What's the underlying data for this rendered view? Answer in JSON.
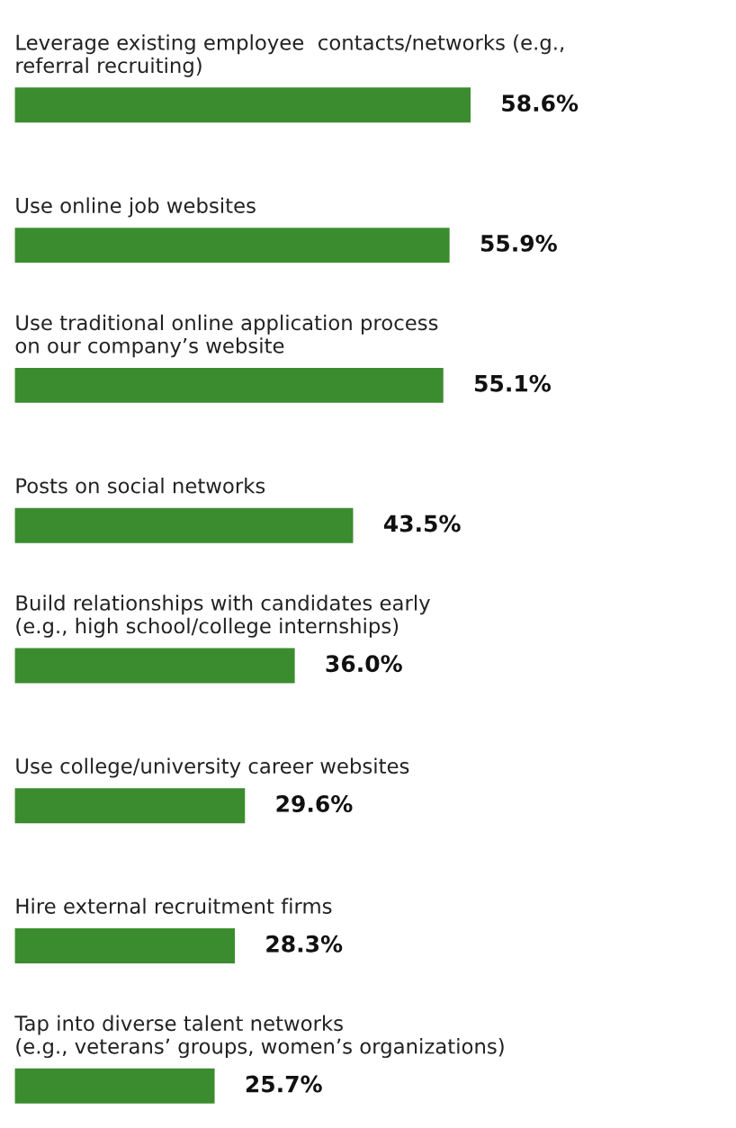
{
  "chart_data": {
    "type": "bar",
    "orientation": "horizontal",
    "color": "#3b8c2f",
    "categories": [
      "Leverage existing employee  contacts/networks (e.g.,\nreferral recruiting)",
      "Use online job websites",
      "Use traditional online application process\non our company’s website",
      "Posts on social networks",
      "Build relationships with candidates early\n(e.g., high school/college internships)",
      "Use college/university career websites",
      "Hire external recruitment firms",
      "Tap into diverse talent networks\n(e.g., veterans’ groups, women’s organizations)"
    ],
    "values": [
      58.6,
      55.9,
      55.1,
      43.5,
      36.0,
      29.6,
      28.3,
      25.7
    ],
    "value_labels": [
      "58.6%",
      "55.9%",
      "55.1%",
      "43.5%",
      "36.0%",
      "29.6%",
      "28.3%",
      "25.7%"
    ]
  }
}
